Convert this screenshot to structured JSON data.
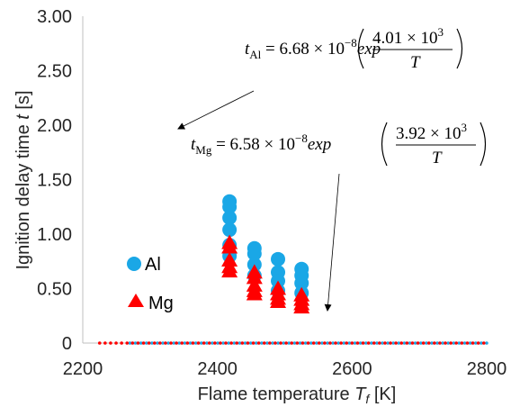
{
  "chart_data": {
    "type": "scatter",
    "xlabel": "Flame temperature",
    "xlabel_sym": "T",
    "xlabel_sub": "f",
    "xlabel_unit": " [K]",
    "ylabel": "Ignition delay time",
    "ylabel_sym": "t",
    "ylabel_unit": " [s]",
    "xlim": [
      2200,
      2800
    ],
    "ylim": [
      0,
      3.0
    ],
    "x_ticks": [
      "2200",
      "2400",
      "2600",
      "2800"
    ],
    "y_ticks": [
      "0",
      "0.50",
      "1.00",
      "1.50",
      "2.00",
      "2.50",
      "3.00"
    ],
    "grid": false,
    "legend_position": "lower-left",
    "series": [
      {
        "name": "Al",
        "marker": "circle",
        "color": "#1aa7e6",
        "points": [
          [
            2418,
            1.3
          ],
          [
            2418,
            1.25
          ],
          [
            2418,
            1.15
          ],
          [
            2418,
            1.04
          ],
          [
            2418,
            0.9
          ],
          [
            2418,
            0.8
          ],
          [
            2455,
            0.87
          ],
          [
            2455,
            0.82
          ],
          [
            2455,
            0.72
          ],
          [
            2455,
            0.62
          ],
          [
            2490,
            0.77
          ],
          [
            2490,
            0.65
          ],
          [
            2490,
            0.57
          ],
          [
            2490,
            0.48
          ],
          [
            2525,
            0.68
          ],
          [
            2525,
            0.62
          ],
          [
            2525,
            0.55
          ],
          [
            2525,
            0.46
          ]
        ]
      },
      {
        "name": "Mg",
        "marker": "triangle",
        "color": "#ff0000",
        "points": [
          [
            2418,
            0.92
          ],
          [
            2418,
            0.88
          ],
          [
            2418,
            0.76
          ],
          [
            2418,
            0.7
          ],
          [
            2418,
            0.66
          ],
          [
            2455,
            0.65
          ],
          [
            2455,
            0.6
          ],
          [
            2455,
            0.53
          ],
          [
            2455,
            0.48
          ],
          [
            2455,
            0.45
          ],
          [
            2490,
            0.5
          ],
          [
            2490,
            0.45
          ],
          [
            2490,
            0.41
          ],
          [
            2490,
            0.38
          ],
          [
            2525,
            0.44
          ],
          [
            2525,
            0.4
          ],
          [
            2525,
            0.36
          ],
          [
            2525,
            0.33
          ]
        ]
      }
    ],
    "fits": [
      {
        "name": "Al",
        "color": "#1aa7e6",
        "A": 6.68e-08,
        "B": 4010,
        "x_start": 2270
      },
      {
        "name": "Mg",
        "color": "#ff0000",
        "A": 6.58e-08,
        "B": 3920,
        "x_start": 2225
      }
    ],
    "annotations": [
      {
        "lhs_sym": "t",
        "lhs_sub": "Al",
        "coef": " = 6.68 × 10",
        "exp": "−8",
        "func": "exp",
        "num": "4.01 × 10",
        "num_exp": "3",
        "den": "T"
      },
      {
        "lhs_sym": "t",
        "lhs_sub": "Mg",
        "coef": " = 6.58 × 10",
        "exp": "−8",
        "func": "exp",
        "num": "3.92 × 10",
        "num_exp": "3",
        "den": "T"
      }
    ]
  }
}
